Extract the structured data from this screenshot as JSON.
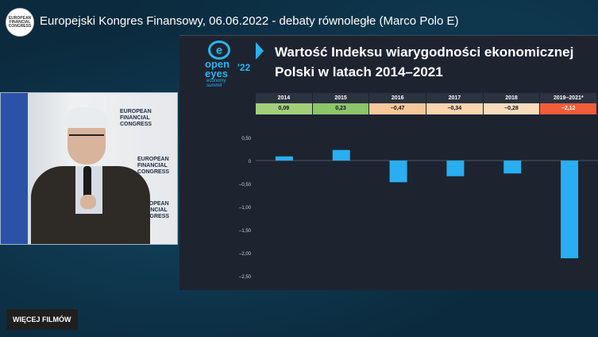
{
  "header": {
    "channel_logo_text": "EUROPEAN FINANCIAL CONGRESS",
    "title": "Europejski Kongres Finansowy, 06.06.2022 - debaty równoległe (Marco Polo E)"
  },
  "speaker_video": {
    "backdrop_text": [
      "EUROPEAN",
      "FINANCIAL",
      "CONGRESS"
    ]
  },
  "slide": {
    "brand": {
      "line1": "open",
      "line2": "eyes",
      "year": "'22",
      "line3": "economy",
      "line4": "summit"
    },
    "title_line1": "Wartość Indeksu wiarygodności ekonomicznej",
    "title_line2": "Polski w latach 2014–2021",
    "table": {
      "years": [
        "2014",
        "2015",
        "2016",
        "2017",
        "2018",
        "2019–2021*"
      ],
      "values": [
        "0,09",
        "0,23",
        "–0,47",
        "–0,34",
        "–0,28",
        "–2,12"
      ],
      "colors": [
        "#a3cf7a",
        "#8cc56a",
        "#f8c89a",
        "#f9d5b0",
        "#f9dcbc",
        "#f25c3b"
      ]
    }
  },
  "chart_data": {
    "type": "bar",
    "categories": [
      "2014",
      "2015",
      "2016",
      "2017",
      "2018",
      "2019–2021*"
    ],
    "values": [
      0.09,
      0.23,
      -0.47,
      -0.34,
      -0.28,
      -2.12
    ],
    "ylim": [
      -2.5,
      0.5
    ],
    "yticks": [
      "0,50",
      "0",
      "–0,50",
      "–1,00",
      "–1,50",
      "–2,00",
      "–2,50"
    ],
    "bar_color": "#29aef0",
    "grid": false
  },
  "footer": {
    "more_videos_label": "WIĘCEJ FILMÓW"
  }
}
